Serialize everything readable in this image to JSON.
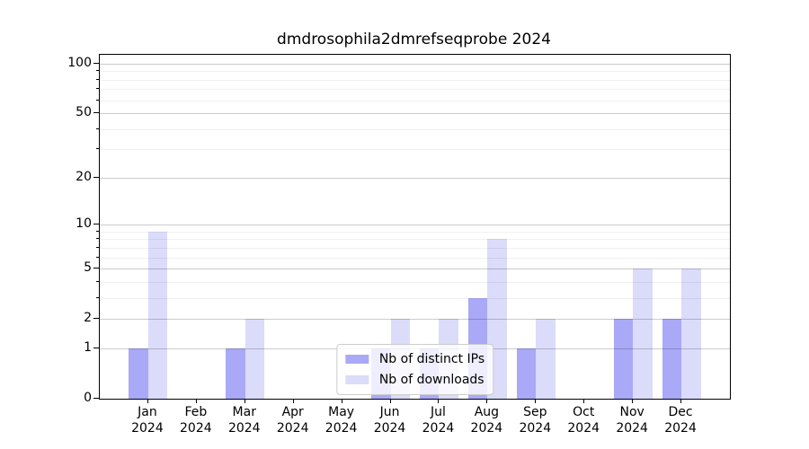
{
  "chart_data": {
    "type": "bar",
    "title": "dmdrosophila2dmrefseqprobe 2024",
    "categories": [
      "Jan",
      "Feb",
      "Mar",
      "Apr",
      "May",
      "Jun",
      "Jul",
      "Aug",
      "Sep",
      "Oct",
      "Nov",
      "Dec"
    ],
    "x_tick_second_line": "2024",
    "series": [
      {
        "name": "Nb of distinct IPs",
        "color": "#a9a9f7",
        "values": [
          1,
          0,
          1,
          0,
          0,
          1,
          1,
          3,
          1,
          0,
          2,
          2
        ]
      },
      {
        "name": "Nb of downloads",
        "color": "#dbdbfa",
        "values": [
          9,
          0,
          2,
          0,
          0,
          2,
          2,
          8,
          2,
          0,
          5,
          5
        ]
      }
    ],
    "yscale": "log1p",
    "ylim": [
      0,
      113
    ],
    "xlim_units": [
      -1,
      12
    ],
    "yticks": [
      0,
      1,
      2,
      5,
      10,
      20,
      50,
      100
    ],
    "minor_yticks": [
      3,
      4,
      6,
      7,
      8,
      9,
      30,
      40,
      60,
      70,
      80,
      90
    ],
    "grid": "on",
    "legend_position": "lower center",
    "background_color": "#ffffff",
    "spine_color": "#000000"
  }
}
